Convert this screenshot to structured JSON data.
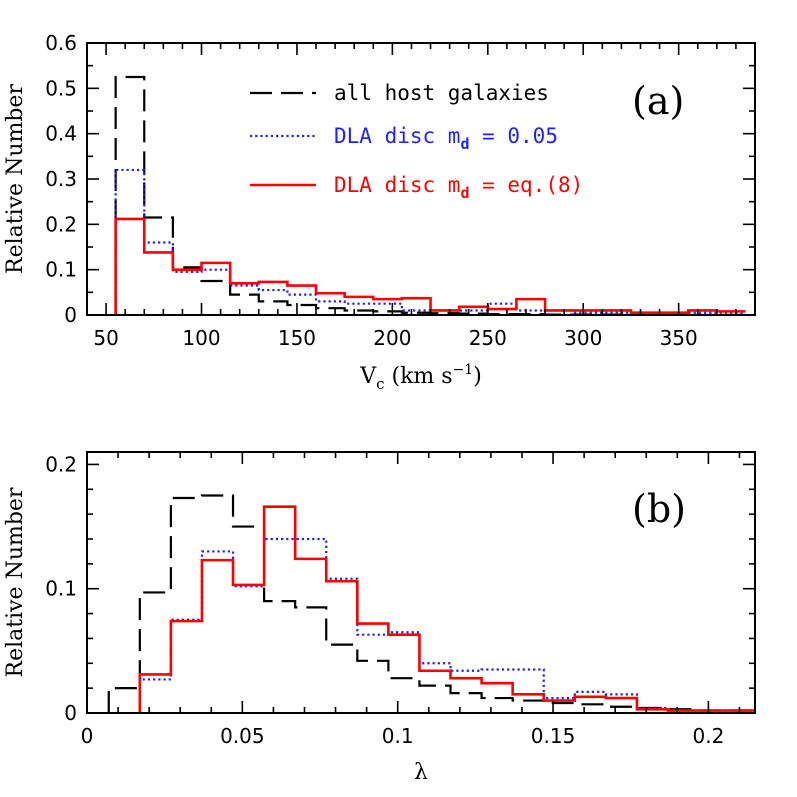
{
  "chart_data": [
    {
      "type": "line",
      "step": true,
      "panel_label": "(a)",
      "xlabel": "V_c (km s^-1)",
      "xlabel_parts": {
        "base": "V",
        "sub": "c",
        "rest": " (km s",
        "sup": "−1",
        "close": ")"
      },
      "ylabel": "Relative Number",
      "xlim": [
        40,
        390
      ],
      "ylim": [
        0,
        0.6
      ],
      "xticks": [
        50,
        100,
        150,
        200,
        250,
        300,
        350
      ],
      "xtick_labels": [
        "50",
        "100",
        "150",
        "200",
        "250",
        "300",
        "350"
      ],
      "yticks": [
        0,
        0.1,
        0.2,
        0.3,
        0.4,
        0.5,
        0.6
      ],
      "ytick_labels": [
        "0",
        "0.1",
        "0.2",
        "0.3",
        "0.4",
        "0.5",
        "0.6"
      ],
      "xminor": [
        60,
        70,
        80,
        90,
        110,
        120,
        130,
        140,
        160,
        170,
        180,
        190,
        210,
        220,
        230,
        240,
        260,
        270,
        280,
        290,
        310,
        320,
        330,
        340,
        360,
        370,
        380
      ],
      "yminor": [
        0.05,
        0.15,
        0.25,
        0.35,
        0.45,
        0.55
      ],
      "grid": false,
      "legend_position": "top-right",
      "bin_edges": [
        55,
        70,
        85,
        100,
        115,
        130,
        145,
        160,
        175,
        190,
        205,
        220,
        235,
        250,
        265,
        280,
        295,
        310,
        325,
        340,
        355,
        370,
        385
      ],
      "series": [
        {
          "name": "all host galaxies",
          "style": "dashed",
          "color": "#000000",
          "values": [
            0.525,
            0.215,
            0.105,
            0.075,
            0.045,
            0.03,
            0.022,
            0.015,
            0.01,
            0.008,
            0.005,
            0.004,
            0.003,
            0.002,
            0.002,
            0.001,
            0.001,
            0.001,
            0.001,
            0,
            0,
            0
          ]
        },
        {
          "name": "DLA disc m_d = 0.05",
          "style": "dotted",
          "color": "#1f1fff",
          "values": [
            0.32,
            0.16,
            0.095,
            0.1,
            0.065,
            0.055,
            0.045,
            0.03,
            0.025,
            0.025,
            0.01,
            0.01,
            0.01,
            0.025,
            0.01,
            0.01,
            0.005,
            0.005,
            0.005,
            0.005,
            0.005,
            0.005
          ]
        },
        {
          "name": "DLA disc m_d = eq.(8)",
          "style": "solid",
          "color": "#ff0000",
          "values": [
            0.212,
            0.138,
            0.1,
            0.115,
            0.07,
            0.073,
            0.065,
            0.048,
            0.04,
            0.035,
            0.037,
            0.01,
            0.018,
            0.013,
            0.035,
            0.01,
            0.01,
            0.01,
            0.005,
            0.005,
            0.01,
            0.008
          ]
        }
      ],
      "legend": [
        {
          "prefix": "all host galaxies",
          "sub": "",
          "suffix": ""
        },
        {
          "prefix": "DLA disc m",
          "sub": "d",
          "suffix": " = 0.05"
        },
        {
          "prefix": "DLA disc m",
          "sub": "d",
          "suffix": " = eq.(8)"
        }
      ]
    },
    {
      "type": "line",
      "step": true,
      "panel_label": "(b)",
      "xlabel": "λ",
      "ylabel": "Relative Number",
      "xlim": [
        0,
        0.215
      ],
      "ylim": [
        0,
        0.21
      ],
      "xticks": [
        0,
        0.05,
        0.1,
        0.15,
        0.2
      ],
      "xtick_labels": [
        "0",
        "0.05",
        "0.1",
        "0.15",
        "0.2"
      ],
      "yticks": [
        0,
        0.1,
        0.2
      ],
      "ytick_labels": [
        "0",
        "0.1",
        "0.2"
      ],
      "xminor": [
        0.01,
        0.02,
        0.03,
        0.04,
        0.06,
        0.07,
        0.08,
        0.09,
        0.11,
        0.12,
        0.13,
        0.14,
        0.16,
        0.17,
        0.18,
        0.19,
        0.21
      ],
      "yminor": [
        0.02,
        0.04,
        0.06,
        0.08,
        0.12,
        0.14,
        0.16,
        0.18
      ],
      "grid": false,
      "series": [
        {
          "name": "all host galaxies",
          "style": "dashed",
          "color": "#000000",
          "bin_edges": [
            0.007,
            0.017,
            0.027,
            0.037,
            0.047,
            0.057,
            0.067,
            0.077,
            0.087,
            0.097,
            0.107,
            0.117,
            0.127,
            0.137,
            0.147,
            0.157,
            0.167,
            0.177,
            0.187,
            0.197,
            0.215
          ],
          "values": [
            0.02,
            0.097,
            0.173,
            0.175,
            0.15,
            0.09,
            0.085,
            0.055,
            0.042,
            0.028,
            0.022,
            0.016,
            0.012,
            0.01,
            0.008,
            0.007,
            0.005,
            0.004,
            0.003,
            0.002
          ]
        },
        {
          "name": "DLA disc m_d = 0.05",
          "style": "dotted",
          "color": "#1f1fff",
          "bin_edges": [
            0.017,
            0.027,
            0.037,
            0.047,
            0.057,
            0.067,
            0.077,
            0.087,
            0.097,
            0.107,
            0.117,
            0.127,
            0.137,
            0.147,
            0.157,
            0.167,
            0.177,
            0.187,
            0.197,
            0.215
          ],
          "values": [
            0.027,
            0.075,
            0.13,
            0.102,
            0.14,
            0.14,
            0.108,
            0.063,
            0.065,
            0.04,
            0.034,
            0.035,
            0.035,
            0.012,
            0.017,
            0.015,
            0.004,
            0.002,
            0.002
          ]
        },
        {
          "name": "DLA disc m_d = eq.(8)",
          "style": "solid",
          "color": "#ff0000",
          "bin_edges": [
            0.017,
            0.027,
            0.037,
            0.047,
            0.057,
            0.067,
            0.077,
            0.087,
            0.097,
            0.107,
            0.117,
            0.127,
            0.137,
            0.147,
            0.157,
            0.167,
            0.177,
            0.187,
            0.197,
            0.215
          ],
          "values": [
            0.031,
            0.074,
            0.123,
            0.103,
            0.166,
            0.124,
            0.106,
            0.072,
            0.063,
            0.034,
            0.028,
            0.024,
            0.015,
            0.01,
            0.013,
            0.012,
            0.003,
            0.002,
            0.002
          ]
        }
      ]
    }
  ]
}
